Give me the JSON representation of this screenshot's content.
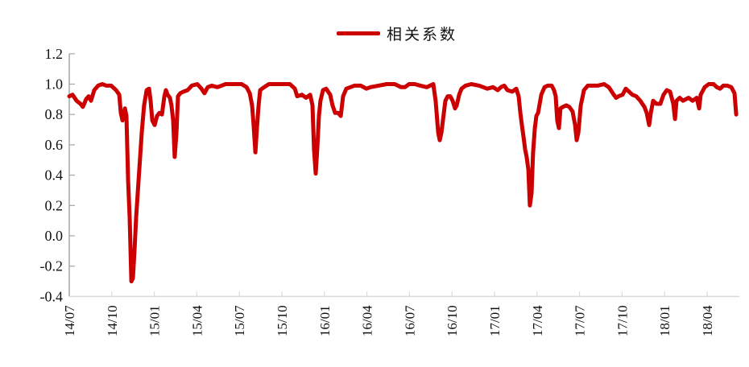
{
  "chart_data": {
    "type": "line",
    "title": "",
    "xlabel": "",
    "ylabel": "",
    "legend_position": "top-center",
    "grid": false,
    "ylim": [
      -0.4,
      1.2
    ],
    "yticks": [
      "1.2",
      "1.0",
      "0.8",
      "0.6",
      "0.4",
      "0.2",
      "0.0",
      "-0.2",
      "-0.4"
    ],
    "ytick_values": [
      1.2,
      1.0,
      0.8,
      0.6,
      0.4,
      0.2,
      0.0,
      -0.2,
      -0.4
    ],
    "xticks": [
      "14/07",
      "14/10",
      "15/01",
      "15/04",
      "15/07",
      "15/10",
      "16/01",
      "16/04",
      "16/07",
      "16/10",
      "17/01",
      "17/04",
      "17/07",
      "17/10",
      "18/01",
      "18/04"
    ],
    "xtick_values": [
      2014.5,
      2014.75,
      2015.0,
      2015.25,
      2015.5,
      2015.75,
      2016.0,
      2016.25,
      2016.5,
      2016.75,
      2017.0,
      2017.25,
      2017.5,
      2017.75,
      2018.0,
      2018.25
    ],
    "series": [
      {
        "name": "相关系数",
        "color": "#cc0000",
        "x": [
          2014.5,
          2014.519,
          2014.543,
          2014.566,
          2014.58,
          2014.599,
          2014.614,
          2014.628,
          2014.647,
          2014.67,
          2014.694,
          2014.718,
          2014.746,
          2014.775,
          2014.794,
          2014.803,
          2014.813,
          2014.827,
          2014.836,
          2014.846,
          2014.855,
          2014.865,
          2014.874,
          2014.884,
          2014.893,
          2014.907,
          2014.926,
          2014.94,
          2014.955,
          2014.969,
          2014.978,
          2014.988,
          2015.002,
          2015.016,
          2015.03,
          2015.045,
          2015.059,
          2015.068,
          2015.078,
          2015.092,
          2015.101,
          2015.111,
          2015.12,
          2015.13,
          2015.139,
          2015.153,
          2015.172,
          2015.196,
          2015.22,
          2015.253,
          2015.277,
          2015.295,
          2015.314,
          2015.338,
          2015.371,
          2015.395,
          2015.419,
          2015.466,
          2015.513,
          2015.542,
          2015.561,
          2015.575,
          2015.584,
          2015.594,
          2015.603,
          2015.613,
          2015.622,
          2015.646,
          2015.674,
          2015.703,
          2015.75,
          2015.797,
          2015.826,
          2015.84,
          2015.868,
          2015.892,
          2015.916,
          2015.93,
          2015.939,
          2015.949,
          2015.958,
          2015.968,
          2015.977,
          2015.992,
          2016.01,
          2016.034,
          2016.048,
          2016.063,
          2016.081,
          2016.096,
          2016.11,
          2016.129,
          2016.153,
          2016.176,
          2016.214,
          2016.247,
          2016.271,
          2016.318,
          2016.366,
          2016.413,
          2016.451,
          2016.474,
          2016.498,
          2016.531,
          2016.564,
          2016.602,
          2016.64,
          2016.654,
          2016.669,
          2016.678,
          2016.688,
          2016.702,
          2016.711,
          2016.725,
          2016.74,
          2016.754,
          2016.768,
          2016.778,
          2016.792,
          2016.806,
          2016.83,
          2016.863,
          2016.91,
          2016.957,
          2016.991,
          2017.019,
          2017.038,
          2017.057,
          2017.076,
          2017.104,
          2017.128,
          2017.142,
          2017.152,
          2017.161,
          2017.171,
          2017.18,
          2017.189,
          2017.199,
          2017.208,
          2017.218,
          2017.227,
          2017.237,
          2017.246,
          2017.256,
          2017.275,
          2017.294,
          2017.313,
          2017.336,
          2017.35,
          2017.36,
          2017.369,
          2017.379,
          2017.388,
          2017.403,
          2017.422,
          2017.44,
          2017.459,
          2017.474,
          2017.483,
          2017.493,
          2017.507,
          2017.526,
          2017.549,
          2017.573,
          2017.606,
          2017.644,
          2017.672,
          2017.701,
          2017.715,
          2017.729,
          2017.753,
          2017.772,
          2017.791,
          2017.81,
          2017.833,
          2017.857,
          2017.881,
          2017.895,
          2017.909,
          2017.919,
          2017.933,
          2017.952,
          2017.975,
          2017.994,
          2018.013,
          2018.032,
          2018.051,
          2018.061,
          2018.07,
          2018.089,
          2018.108,
          2018.141,
          2018.165,
          2018.189,
          2018.203,
          2018.212,
          2018.236,
          2018.26,
          2018.288,
          2018.307,
          2018.326,
          2018.345,
          2018.369,
          2018.392,
          2018.411,
          2018.421
        ],
        "y": [
          0.92,
          0.93,
          0.89,
          0.87,
          0.85,
          0.9,
          0.92,
          0.89,
          0.96,
          0.99,
          1.0,
          0.99,
          0.99,
          0.96,
          0.93,
          0.81,
          0.76,
          0.84,
          0.79,
          0.36,
          0.12,
          -0.3,
          -0.28,
          -0.09,
          0.12,
          0.36,
          0.68,
          0.86,
          0.96,
          0.97,
          0.89,
          0.76,
          0.73,
          0.79,
          0.81,
          0.8,
          0.92,
          0.96,
          0.93,
          0.91,
          0.86,
          0.76,
          0.52,
          0.68,
          0.92,
          0.94,
          0.95,
          0.96,
          0.99,
          1.0,
          0.97,
          0.94,
          0.98,
          0.99,
          0.98,
          0.99,
          1.0,
          1.0,
          1.0,
          0.98,
          0.94,
          0.86,
          0.73,
          0.55,
          0.71,
          0.86,
          0.96,
          0.98,
          1.0,
          1.0,
          1.0,
          1.0,
          0.97,
          0.92,
          0.93,
          0.91,
          0.93,
          0.86,
          0.57,
          0.41,
          0.57,
          0.79,
          0.89,
          0.96,
          0.97,
          0.93,
          0.86,
          0.81,
          0.81,
          0.79,
          0.92,
          0.97,
          0.98,
          0.99,
          0.99,
          0.97,
          0.98,
          0.99,
          1.0,
          1.0,
          0.98,
          0.98,
          1.0,
          1.0,
          0.99,
          0.98,
          1.0,
          0.89,
          0.68,
          0.63,
          0.68,
          0.81,
          0.89,
          0.92,
          0.92,
          0.89,
          0.84,
          0.86,
          0.93,
          0.97,
          0.99,
          1.0,
          0.99,
          0.97,
          0.98,
          0.96,
          0.98,
          0.99,
          0.96,
          0.95,
          0.97,
          0.92,
          0.81,
          0.73,
          0.65,
          0.57,
          0.52,
          0.44,
          0.2,
          0.28,
          0.55,
          0.71,
          0.79,
          0.81,
          0.93,
          0.98,
          0.99,
          0.99,
          0.96,
          0.92,
          0.76,
          0.71,
          0.84,
          0.85,
          0.86,
          0.85,
          0.82,
          0.73,
          0.63,
          0.68,
          0.86,
          0.96,
          0.99,
          0.99,
          0.99,
          1.0,
          0.98,
          0.93,
          0.91,
          0.92,
          0.93,
          0.97,
          0.95,
          0.93,
          0.92,
          0.89,
          0.85,
          0.81,
          0.73,
          0.81,
          0.89,
          0.87,
          0.87,
          0.93,
          0.96,
          0.95,
          0.87,
          0.77,
          0.89,
          0.91,
          0.89,
          0.91,
          0.89,
          0.91,
          0.84,
          0.93,
          0.98,
          1.0,
          1.0,
          0.98,
          0.97,
          0.99,
          0.99,
          0.98,
          0.94,
          0.8
        ]
      }
    ]
  }
}
